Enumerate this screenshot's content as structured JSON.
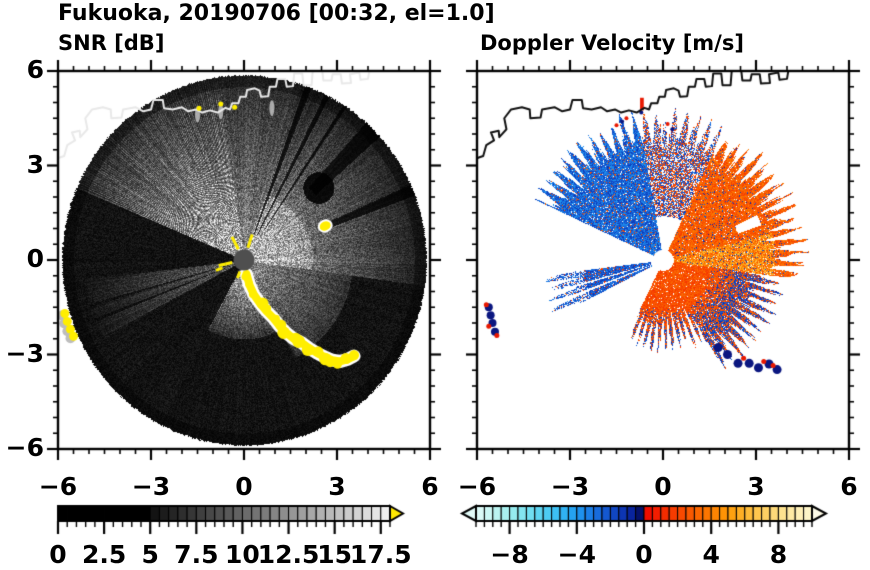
{
  "header": {
    "title": "Fukuoka, 20190706 [00:32, el=1.0]"
  },
  "panels": {
    "snr": {
      "subtitle": "SNR [dB]"
    },
    "doppler": {
      "subtitle": "Doppler Velocity [m/s]"
    }
  },
  "axes": {
    "xlim": [
      -6,
      6
    ],
    "ylim": [
      -6,
      6
    ],
    "xtick_values": [
      -6,
      -3,
      0,
      3,
      6
    ],
    "ytick_values": [
      6,
      3,
      0,
      -3,
      -6
    ],
    "xtick_labels": [
      "−6",
      "−3",
      "0",
      "3",
      "6"
    ],
    "ytick_labels": [
      "6",
      "3",
      "0",
      "−3",
      "−6"
    ],
    "minor_step": 0.5
  },
  "chart_data": [
    {
      "type": "heatmap",
      "title": "SNR [dB]",
      "xlabel": "",
      "ylabel": "",
      "xlim": [
        -6,
        6
      ],
      "ylim": [
        -6,
        6
      ],
      "grid": false,
      "radar_center": [
        0,
        0
      ],
      "radar_radius": 5.85,
      "center_dot": {
        "x": 0,
        "y": 0,
        "r": 0.34,
        "color": "#4f4f4f"
      },
      "colorbar": {
        "range": [
          0,
          18
        ],
        "cell": 0.5,
        "tick_values": [
          0,
          2.5,
          5,
          7.5,
          10,
          12.5,
          15,
          17.5
        ],
        "tick_labels": [
          "0",
          "2.5",
          "5",
          "7.5",
          "10",
          "12.5",
          "15",
          "17.5"
        ],
        "black_below": 5,
        "low_color": "#000000",
        "high_color": "#f2f2f2",
        "over_arrow_color": "#ffe800"
      },
      "sectors": [
        {
          "az": [
            293,
            352
          ],
          "peak": 0.88,
          "falloff": 7.0,
          "rmax": 6.0,
          "streaky": true
        },
        {
          "az": [
            352,
            378
          ],
          "peak": 0.5,
          "falloff": 7.5,
          "rmax": 6.0,
          "streaky": false
        },
        {
          "az": [
            18,
            98
          ],
          "peak": 0.55,
          "falloff": 6.5,
          "rmax": 6.0,
          "inner_boost": 0.15
        },
        {
          "az": [
            98,
            152
          ],
          "peak": 0.48,
          "falloff": 4.8,
          "rmax": 3.5
        },
        {
          "az": [
            152,
            208
          ],
          "peak": 0.7,
          "falloff": 3.1,
          "rmax": 2.5
        },
        {
          "az": [
            242,
            263
          ],
          "peak": 0.34,
          "falloff": 5.8,
          "rmax": 5.2,
          "gaps": [
            248.5,
            254
          ]
        }
      ],
      "shadows": [
        {
          "az": 20.5,
          "w": 1.0,
          "rmin": 0.9
        },
        {
          "az": 27.0,
          "w": 0.8,
          "rmin": 0.9
        },
        {
          "az": 33.5,
          "w": 0.6,
          "rmin": 1.2
        },
        {
          "az": 45.0,
          "w": 3.0,
          "rmin": 3.1
        },
        {
          "az": 67.6,
          "w": 1.8,
          "rmin": 2.95
        }
      ],
      "dark_blob": {
        "x": 2.4,
        "y": 2.3,
        "r": 0.5
      },
      "clutter_color": "#ffee00",
      "clutter_chain": [
        [
          0.08,
          -0.45
        ],
        [
          0.18,
          -0.8
        ],
        [
          0.32,
          -1.1
        ],
        [
          0.52,
          -1.38
        ],
        [
          0.72,
          -1.62
        ],
        [
          0.95,
          -1.85
        ],
        [
          1.15,
          -2.1
        ],
        [
          1.35,
          -2.3
        ],
        [
          1.6,
          -2.5
        ],
        [
          1.85,
          -2.62
        ],
        [
          2.1,
          -2.8
        ],
        [
          2.35,
          -2.95
        ],
        [
          2.6,
          -3.08
        ],
        [
          2.85,
          -3.18
        ],
        [
          3.1,
          -3.22
        ],
        [
          3.35,
          -3.15
        ],
        [
          3.55,
          -3.05
        ]
      ],
      "clutter_left_edge": [
        [
          -5.78,
          -1.7
        ],
        [
          -5.7,
          -1.95
        ],
        [
          -5.6,
          -2.2
        ],
        [
          -5.5,
          -2.42
        ]
      ],
      "clutter_blob": {
        "x": 2.62,
        "y": 1.08,
        "r": 0.18
      },
      "clutter_coast_dots": [
        [
          -1.45,
          4.82
        ],
        [
          -0.75,
          4.95
        ],
        [
          -0.3,
          4.85
        ]
      ],
      "coast_smudges": [
        [
          -0.75,
          4.72
        ],
        [
          -1.5,
          4.62
        ],
        [
          0.9,
          4.82
        ]
      ],
      "center_dashes_az_r": [
        [
          -28,
          0.5
        ],
        [
          -28,
          0.72
        ],
        [
          18,
          0.52
        ],
        [
          18,
          0.74
        ],
        [
          258,
          0.5
        ],
        [
          258,
          0.72
        ],
        [
          250,
          0.85
        ],
        [
          200,
          0.5
        ]
      ]
    },
    {
      "type": "heatmap",
      "title": "Doppler Velocity [m/s]",
      "xlabel": "",
      "ylabel": "",
      "xlim": [
        -6,
        6
      ],
      "ylim": [
        -6,
        6
      ],
      "grid": false,
      "radar_center": [
        0,
        0
      ],
      "center_hole_r": 0.33,
      "colorbar": {
        "range": [
          -10,
          10
        ],
        "cell": 0.5,
        "tick_values": [
          -8,
          -4,
          0,
          4,
          8
        ],
        "tick_labels": [
          "−8",
          "−4",
          "0",
          "4",
          "8"
        ],
        "under_arrow_color": "#e2fbf8",
        "over_arrow_color": "#fdfae6"
      },
      "palette_stops": [
        [
          -10,
          "#e2fbf8"
        ],
        [
          -9,
          "#c4f6f2"
        ],
        [
          -8,
          "#9feeee"
        ],
        [
          -7,
          "#79e2f0"
        ],
        [
          -6,
          "#55d0f2"
        ],
        [
          -5,
          "#35baf4"
        ],
        [
          -4,
          "#1f9af0"
        ],
        [
          -3,
          "#1a74e2"
        ],
        [
          -2,
          "#124eca"
        ],
        [
          -1,
          "#0b2cab"
        ],
        [
          -0.5,
          "#071b8e"
        ],
        [
          -0.02,
          "#030748"
        ],
        [
          0.02,
          "#ee0500"
        ],
        [
          1,
          "#f32500"
        ],
        [
          2,
          "#f74200"
        ],
        [
          3,
          "#fa5f00"
        ],
        [
          4,
          "#fc7c00"
        ],
        [
          5,
          "#fe9a06"
        ],
        [
          6,
          "#feb52e"
        ],
        [
          7,
          "#fecb58"
        ],
        [
          8,
          "#fede84"
        ],
        [
          9,
          "#feecae"
        ],
        [
          10,
          "#fdf6d0"
        ]
      ],
      "regions": [
        {
          "az": [
            295,
            350
          ],
          "rmin": 0.33,
          "rmax": 4.15,
          "v": [
            -4.0,
            -1.2
          ],
          "speckle_v": [
            1.5,
            3.5
          ],
          "speckle_p": 0.07,
          "hole_p": 0.05
        },
        {
          "az": [
            350,
            385
          ],
          "rmin": 1.4,
          "rmax": 4.2,
          "mix": true,
          "hole_p": 0.3
        },
        {
          "az": [
            25,
            98
          ],
          "rmin": 0.33,
          "rmax": 4.0,
          "v": [
            1.6,
            4.2
          ],
          "streak_az": [
            76,
            100
          ],
          "streak_rmax": 3.6,
          "streak_v": [
            3.5,
            7.0
          ],
          "speckle_v": [
            -2.6,
            -0.6
          ],
          "speckle_p": 0.06,
          "hole_p": 0.04,
          "notch_az": [
            64.5,
            70.5
          ],
          "notch_r": [
            2.55,
            3.35
          ]
        },
        {
          "az": [
            98,
            152
          ],
          "rmin": 0.33,
          "rmax": 3.35,
          "v": [
            1.4,
            3.6
          ],
          "navy_grad": true,
          "hole_p": 0.05
        },
        {
          "az": [
            152,
            206
          ],
          "rmin": 0.33,
          "rmax": 2.3,
          "v": [
            1.4,
            3.4
          ],
          "navy_grad": true,
          "hole_p": 0.06
        },
        {
          "az": [
            243,
            263
          ],
          "rmin": 0.4,
          "rmax": 3.35,
          "v": [
            -3.5,
            -1.0
          ],
          "speckle_v": [
            1.0,
            3.0
          ],
          "speckle_p": 0.1,
          "hole_p": 0.06,
          "gaps": [
            [
              248,
              249.6
            ],
            [
              253.5,
              254.7
            ]
          ],
          "sparse_r": 2.6
        }
      ],
      "navy_color": "#0a1680",
      "red_color": "#e81800",
      "left_patch_navy": [
        [
          -5.62,
          -1.5
        ],
        [
          -5.56,
          -1.75
        ],
        [
          -5.5,
          -2.0
        ],
        [
          -5.42,
          -2.28
        ]
      ],
      "left_patch_red": [
        [
          -5.7,
          -1.42
        ],
        [
          -5.36,
          -2.4
        ],
        [
          -5.62,
          -2.1
        ]
      ],
      "br_chain_navy": [
        [
          1.78,
          -2.78
        ],
        [
          2.08,
          -3.0
        ],
        [
          2.42,
          -3.28
        ],
        [
          2.78,
          -3.28
        ],
        [
          3.08,
          -3.42
        ],
        [
          3.42,
          -3.3
        ],
        [
          3.68,
          -3.48
        ]
      ],
      "br_chain_red": [
        [
          2.6,
          -3.12
        ],
        [
          3.25,
          -3.22
        ],
        [
          3.55,
          -3.35
        ]
      ],
      "top_specks_red": [
        [
          -1.18,
          4.5
        ],
        [
          -1.5,
          4.28
        ],
        [
          0.15,
          4.32
        ]
      ],
      "top_specks_navy": [
        [
          -1.32,
          4.4
        ],
        [
          0.3,
          4.15
        ],
        [
          -0.7,
          4.68
        ]
      ],
      "top_red_dash": {
        "x": -0.68,
        "y": 4.95,
        "w": 0.12,
        "h": 0.4
      }
    }
  ],
  "coastline": {
    "color_left_panel": "#e9e9e9",
    "color_right_panel": "#111111",
    "segments": [
      [
        [
          -6.1,
          3.2
        ],
        [
          -5.8,
          3.3
        ],
        [
          -5.7,
          3.65
        ],
        [
          -5.45,
          3.8
        ],
        [
          -5.55,
          4.05
        ],
        [
          -5.3,
          4.1
        ],
        [
          -5.28,
          3.9
        ],
        [
          -5.05,
          4.15
        ],
        [
          -5.12,
          4.5
        ],
        [
          -4.9,
          4.78
        ],
        [
          -4.55,
          4.85
        ],
        [
          -4.3,
          4.78
        ],
        [
          -4.28,
          4.5
        ],
        [
          -3.95,
          4.52
        ],
        [
          -3.9,
          4.78
        ],
        [
          -3.5,
          4.85
        ],
        [
          -3.25,
          4.72
        ],
        [
          -3.0,
          4.78
        ],
        [
          -2.92,
          5.08
        ],
        [
          -2.62,
          5.08
        ],
        [
          -2.58,
          4.82
        ],
        [
          -2.3,
          4.78
        ],
        [
          -2.0,
          4.85
        ],
        [
          -1.8,
          4.72
        ],
        [
          -1.55,
          4.78
        ],
        [
          -1.35,
          4.68
        ],
        [
          -1.1,
          4.75
        ],
        [
          -0.85,
          4.68
        ],
        [
          -0.6,
          4.83
        ],
        [
          -0.45,
          4.78
        ],
        [
          -0.38,
          4.98
        ],
        [
          -0.18,
          4.98
        ],
        [
          -0.12,
          5.18
        ],
        [
          0.06,
          5.18
        ],
        [
          0.1,
          5.4
        ],
        [
          0.35,
          5.45
        ],
        [
          0.5,
          5.38
        ],
        [
          0.55,
          5.18
        ],
        [
          0.78,
          5.2
        ],
        [
          0.83,
          5.5
        ],
        [
          1.03,
          5.5
        ],
        [
          1.08,
          5.75
        ],
        [
          1.33,
          5.75
        ],
        [
          1.38,
          5.5
        ],
        [
          1.58,
          5.52
        ],
        [
          1.62,
          5.92
        ],
        [
          1.88,
          5.92
        ],
        [
          1.92,
          5.55
        ],
        [
          2.18,
          5.55
        ],
        [
          2.22,
          6.05
        ]
      ],
      [
        [
          2.52,
          6.05
        ],
        [
          2.56,
          5.7
        ],
        [
          2.82,
          5.7
        ],
        [
          2.86,
          5.9
        ],
        [
          3.12,
          5.9
        ],
        [
          3.16,
          5.6
        ],
        [
          3.45,
          5.62
        ],
        [
          3.42,
          5.9
        ],
        [
          3.72,
          5.95
        ],
        [
          3.76,
          5.72
        ],
        [
          4.0,
          5.75
        ],
        [
          4.05,
          6.05
        ]
      ]
    ]
  }
}
